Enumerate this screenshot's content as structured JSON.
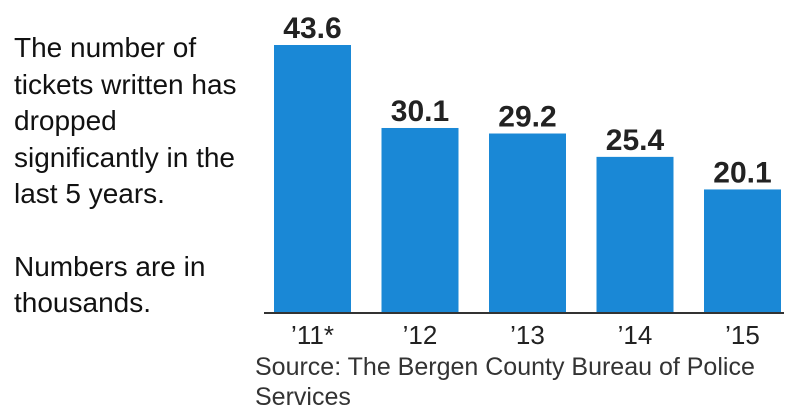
{
  "caption": {
    "line1": "The number of tickets written has dropped significantly in the last 5 years.",
    "line2": "Numbers are in thousands."
  },
  "source": "Source: The Bergen County Bureau of Police Services",
  "colors": {
    "bar": "#1a88d6",
    "axis": "#333333",
    "label": "#222222"
  },
  "chart_data": {
    "type": "bar",
    "categories": [
      "’11*",
      "’12",
      "’13",
      "’14",
      "’15"
    ],
    "values": [
      43.6,
      30.1,
      29.2,
      25.4,
      20.1
    ],
    "title": "",
    "xlabel": "",
    "ylabel": "",
    "ylim": [
      0,
      43.6
    ],
    "grid": false,
    "legend": "none"
  }
}
